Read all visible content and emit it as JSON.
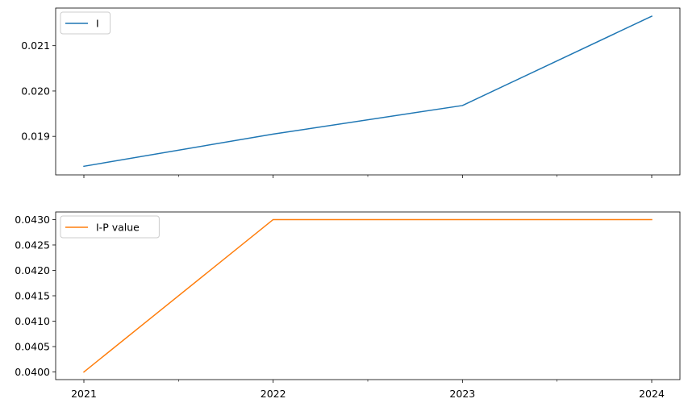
{
  "chart_data": [
    {
      "type": "line",
      "x": [
        "2021",
        "2022",
        "2023",
        "2024"
      ],
      "series": [
        {
          "name": "I",
          "values": [
            0.01834,
            0.01905,
            0.01968,
            0.02165
          ],
          "color": "#1f77b4"
        }
      ],
      "ylim": [
        0.01815,
        0.02183
      ],
      "yticks": [
        "0.019",
        "0.020",
        "0.021"
      ],
      "xlabel": "",
      "ylabel": "",
      "legend": "upper left",
      "grid": false
    },
    {
      "type": "line",
      "x": [
        "2021",
        "2022",
        "2023",
        "2024"
      ],
      "series": [
        {
          "name": "I-P value",
          "values": [
            0.04,
            0.043,
            0.043,
            0.043
          ],
          "color": "#ff7f0e"
        }
      ],
      "ylim": [
        0.03985,
        0.04315
      ],
      "yticks": [
        "0.0400",
        "0.0405",
        "0.0410",
        "0.0415",
        "0.0420",
        "0.0425",
        "0.0430"
      ],
      "xticks": [
        "2021",
        "2022",
        "2023",
        "2024"
      ],
      "xlabel": "",
      "ylabel": "",
      "legend": "upper left",
      "grid": false
    }
  ]
}
